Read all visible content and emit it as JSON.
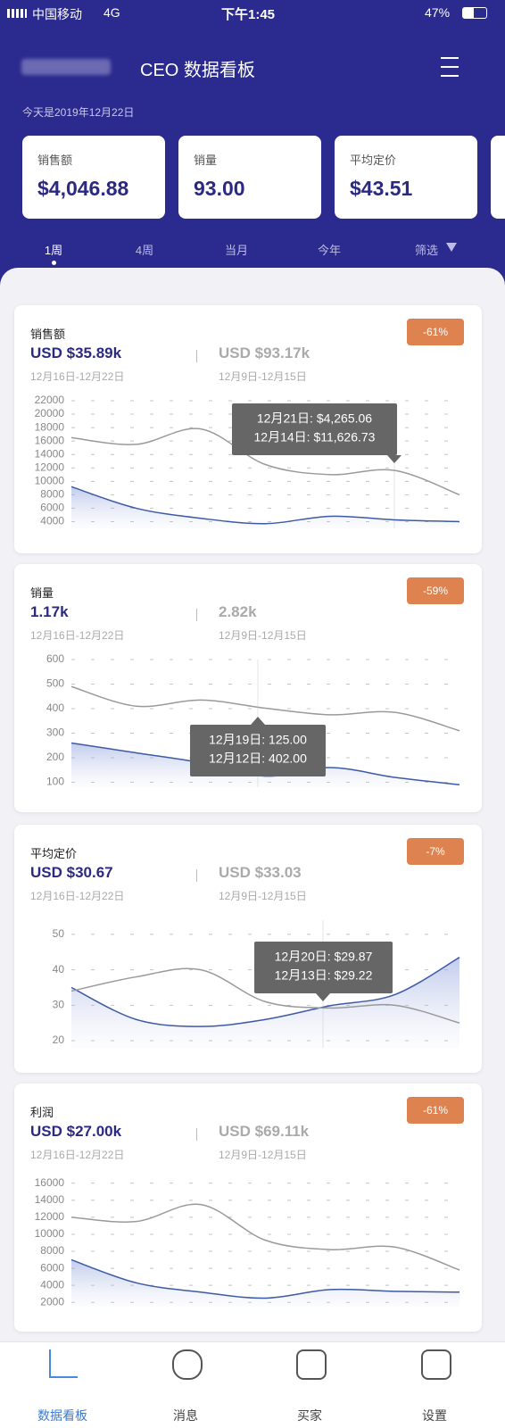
{
  "status": {
    "carrier": "中国移动",
    "network": "4G",
    "time": "下午1:45",
    "battery": "47%"
  },
  "header": {
    "title": "CEO 数据看板",
    "date": "今天是2019年12月22日"
  },
  "kpis": [
    {
      "label": "销售额",
      "value": "$4,046.88"
    },
    {
      "label": "销量",
      "value": "93.00"
    },
    {
      "label": "平均定价",
      "value": "$43.51"
    }
  ],
  "tabs": [
    "1周",
    "4周",
    "当月",
    "今年",
    "筛选"
  ],
  "cards": [
    {
      "title": "销售额",
      "badge": "-61%",
      "current": "USD $35.89k",
      "current_range": "12月16日-12月22日",
      "previous": "USD $93.17k",
      "previous_range": "12月9日-12月15日"
    },
    {
      "title": "销量",
      "badge": "-59%",
      "current": "1.17k",
      "current_range": "12月16日-12月22日",
      "previous": "2.82k",
      "previous_range": "12月9日-12月15日"
    },
    {
      "title": "平均定价",
      "badge": "-7%",
      "current": "USD $30.67",
      "current_range": "12月16日-12月22日",
      "previous": "USD $33.03",
      "previous_range": "12月9日-12月15日"
    },
    {
      "title": "利润",
      "badge": "-61%",
      "current": "USD $27.00k",
      "current_range": "12月16日-12月22日",
      "previous": "USD $69.11k",
      "previous_range": "12月9日-12月15日"
    }
  ],
  "chart_data": [
    {
      "type": "line",
      "ylim": [
        3000,
        22000
      ],
      "yticks": [
        4000,
        6000,
        8000,
        10000,
        12000,
        14000,
        16000,
        18000,
        20000,
        22000
      ],
      "grid": true,
      "series": [
        {
          "color": "#3d5aa6",
          "values": [
            9200,
            6000,
            4500,
            3700,
            4800,
            4265.06,
            4000
          ]
        },
        {
          "color": "#9a9a9a",
          "values": [
            16500,
            15500,
            17800,
            12500,
            11000,
            11626.73,
            8000
          ]
        }
      ],
      "tooltip": [
        "12月21日: $4,265.06",
        "12月14日: $11,626.73"
      ]
    },
    {
      "type": "line",
      "ylim": [
        80,
        600
      ],
      "yticks": [
        100,
        200,
        300,
        400,
        500,
        600
      ],
      "grid": true,
      "series": [
        {
          "color": "#3d5aa6",
          "values": [
            260,
            220,
            180,
            125,
            160,
            120,
            90
          ]
        },
        {
          "color": "#9a9a9a",
          "values": [
            490,
            410,
            435,
            402,
            375,
            385,
            310
          ]
        }
      ],
      "tooltip": [
        "12月19日: 125.00",
        "12月12日: 402.00"
      ]
    },
    {
      "type": "line",
      "ylim": [
        18,
        54
      ],
      "yticks": [
        20,
        30,
        40,
        50
      ],
      "grid": true,
      "series": [
        {
          "color": "#3d5aa6",
          "values": [
            35,
            26,
            24,
            26,
            29.87,
            33,
            43.5
          ]
        },
        {
          "color": "#9a9a9a",
          "values": [
            34,
            38,
            40,
            31,
            29.22,
            30,
            25
          ]
        }
      ],
      "tooltip": [
        "12月20日: $29.87",
        "12月13日: $29.22"
      ]
    },
    {
      "type": "line",
      "ylim": [
        1500,
        16500
      ],
      "yticks": [
        2000,
        4000,
        6000,
        8000,
        10000,
        12000,
        14000,
        16000
      ],
      "grid": true,
      "series": [
        {
          "color": "#3d5aa6",
          "values": [
            7000,
            4300,
            3200,
            2500,
            3500,
            3300,
            3200
          ]
        },
        {
          "color": "#9a9a9a",
          "values": [
            12000,
            11500,
            13500,
            9300,
            8200,
            8500,
            5800
          ]
        }
      ]
    }
  ],
  "nav": [
    "数据看板",
    "消息",
    "买家",
    "设置"
  ]
}
